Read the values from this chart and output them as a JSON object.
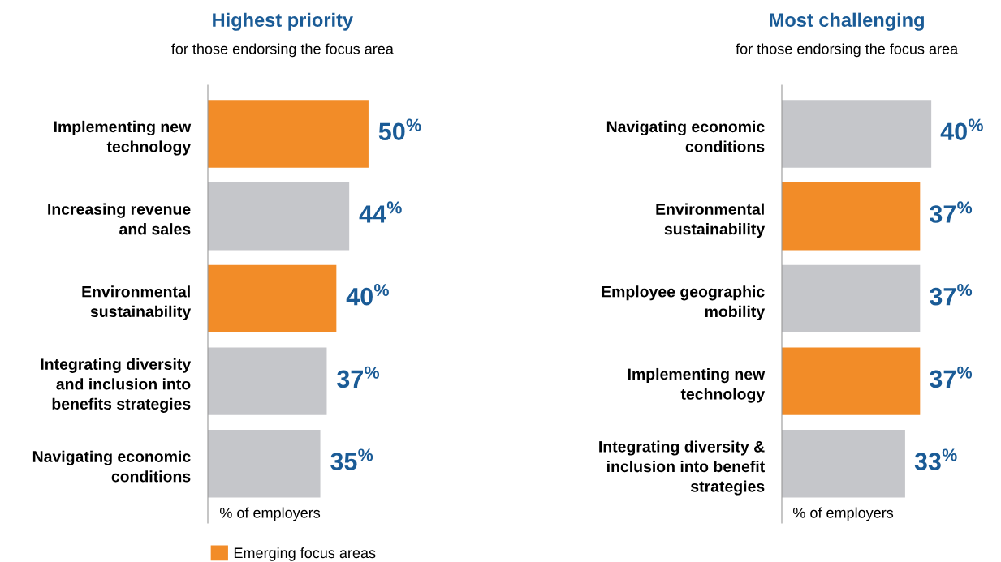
{
  "chart_data": [
    {
      "type": "bar",
      "orientation": "horizontal",
      "title": "Highest priority",
      "subtitle": "for those endorsing the focus area",
      "xlabel": "% of employers",
      "legend": "bottom",
      "categories": [
        "Implementing new\ntechnology",
        "Increasing revenue\nand sales",
        "Environmental\nsustainability",
        "Integrating diversity\nand inclusion into\nbenefits strategies",
        "Navigating economic\nconditions"
      ],
      "series": [
        {
          "name": "Emerging focus areas",
          "color": "#f28c28",
          "values": [
            50,
            null,
            40,
            null,
            null
          ],
          "value_labels": [
            "50$^{%}$",
            null,
            "40$^{%}$",
            null,
            null
          ]
        },
        {
          "color": "#c5c6ca",
          "values": [
            null,
            44,
            null,
            37,
            35
          ],
          "value_labels": [
            null,
            "44$^{%}$",
            null,
            "37$^{%}$",
            "35$^{%}$"
          ]
        }
      ]
    },
    {
      "type": "bar",
      "orientation": "horizontal",
      "title": "Most challenging",
      "subtitle": "for those endorsing the focus area",
      "xlabel": "% of employers",
      "categories": [
        "Navigating economic\nconditions",
        "Environmental\nsustainability",
        "Employee geographic\nmobility",
        "Implementing new\ntechnology",
        "Integrating diversity &\ninclusion into benefit\nstrategies"
      ],
      "series": [
        {
          "color": "#f28c28",
          "values": [
            null,
            37,
            null,
            37,
            null
          ],
          "value_labels": [
            null,
            "37$^{%}$",
            null,
            "37$^{%}$",
            null
          ]
        },
        {
          "color": "#c5c6ca",
          "values": [
            40,
            null,
            37,
            null,
            33
          ],
          "value_labels": [
            "40$^{%}$",
            null,
            "37$^{%}$",
            null,
            "33$^{%}$"
          ]
        }
      ]
    }
  ]
}
